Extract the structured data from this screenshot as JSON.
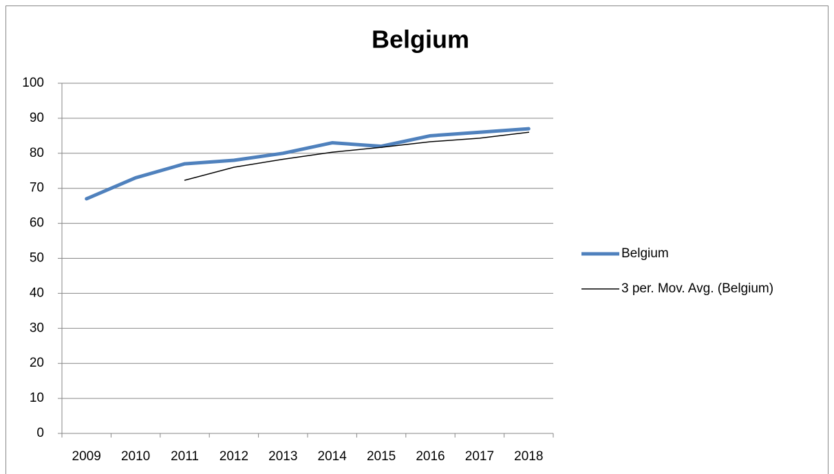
{
  "chart_data": {
    "type": "line",
    "title": "Belgium",
    "categories": [
      "2009",
      "2010",
      "2011",
      "2012",
      "2013",
      "2014",
      "2015",
      "2016",
      "2017",
      "2018"
    ],
    "series": [
      {
        "name": "Belgium",
        "color": "#4f81bd",
        "values": [
          67,
          73,
          77,
          78,
          80,
          83,
          82,
          85,
          86,
          87
        ]
      },
      {
        "name": "3 per. Mov. Avg. (Belgium)",
        "color": "#000000",
        "values": [
          null,
          null,
          72.3,
          76,
          78.3,
          80.3,
          81.7,
          83.3,
          84.3,
          86
        ]
      }
    ],
    "ylim": [
      0,
      100
    ],
    "yticks": [
      0,
      10,
      20,
      30,
      40,
      50,
      60,
      70,
      80,
      90,
      100
    ],
    "grid": true,
    "legend": "right"
  }
}
